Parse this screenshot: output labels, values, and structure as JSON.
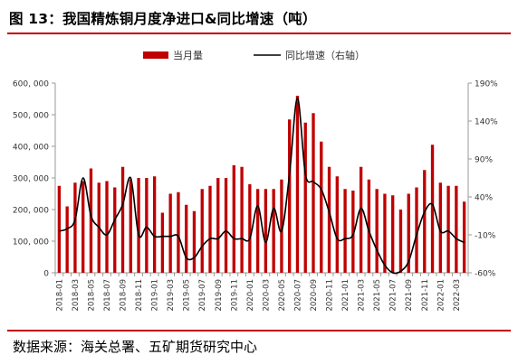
{
  "figure": {
    "title": "图 13：我国精炼铜月度净进口&同比增速（吨）",
    "source": "数据来源：海关总署、五矿期货研究中心"
  },
  "chart_data": {
    "type": "bar",
    "legend": {
      "bar_name": "当月量",
      "line_name": "同比增速（右轴）",
      "position": "top-center"
    },
    "categories": [
      "2018-01",
      "2018-02",
      "2018-03",
      "2018-04",
      "2018-05",
      "2018-06",
      "2018-07",
      "2018-08",
      "2018-09",
      "2018-10",
      "2018-11",
      "2018-12",
      "2019-01",
      "2019-02",
      "2019-03",
      "2019-04",
      "2019-05",
      "2019-06",
      "2019-07",
      "2019-08",
      "2019-09",
      "2019-10",
      "2019-11",
      "2019-12",
      "2020-01",
      "2020-02",
      "2020-03",
      "2020-04",
      "2020-05",
      "2020-06",
      "2020-07",
      "2020-08",
      "2020-09",
      "2020-10",
      "2020-11",
      "2020-12",
      "2021-01",
      "2021-02",
      "2021-03",
      "2021-04",
      "2021-05",
      "2021-06",
      "2021-07",
      "2021-08",
      "2021-09",
      "2021-10",
      "2021-11",
      "2021-12",
      "2022-01",
      "2022-02",
      "2022-03",
      "2022-04"
    ],
    "x_tick_labels": [
      "2018-01",
      "2018-03",
      "2018-05",
      "2018-07",
      "2018-09",
      "2018-11",
      "2019-01",
      "2019-03",
      "2019-05",
      "2019-07",
      "2019-09",
      "2019-11",
      "2020-01",
      "2020-03",
      "2020-05",
      "2020-07",
      "2020-09",
      "2020-11",
      "2021-01",
      "2021-03",
      "2021-05",
      "2021-07",
      "2021-09",
      "2021-11",
      "2022-01",
      "2022-03"
    ],
    "series": [
      {
        "name": "当月量",
        "type": "bar",
        "axis": "left",
        "color": "#c00000",
        "values": [
          275000,
          210000,
          285000,
          290000,
          330000,
          285000,
          290000,
          270000,
          335000,
          295000,
          300000,
          300000,
          305000,
          190000,
          250000,
          255000,
          215000,
          195000,
          265000,
          275000,
          300000,
          300000,
          340000,
          335000,
          280000,
          265000,
          265000,
          265000,
          295000,
          485000,
          560000,
          475000,
          505000,
          415000,
          335000,
          305000,
          265000,
          260000,
          335000,
          295000,
          265000,
          250000,
          245000,
          200000,
          250000,
          270000,
          325000,
          405000,
          285000,
          275000,
          275000,
          225000
        ]
      },
      {
        "name": "同比增速（右轴）",
        "type": "line",
        "axis": "right",
        "color": "#000000",
        "values": [
          -5,
          -2,
          10,
          65,
          15,
          0,
          -10,
          10,
          30,
          65,
          -10,
          0,
          -12,
          -12,
          -12,
          -12,
          -40,
          -40,
          -25,
          -15,
          -15,
          -5,
          -15,
          -15,
          -15,
          28,
          -20,
          25,
          -5,
          70,
          170,
          70,
          60,
          50,
          20,
          -15,
          -15,
          -10,
          25,
          -5,
          -30,
          -50,
          -60,
          -58,
          -45,
          -10,
          20,
          30,
          -5,
          -5,
          -15,
          -20
        ]
      }
    ],
    "y_left": {
      "ticks": [
        "0",
        "100, 000",
        "200, 000",
        "300, 000",
        "400, 000",
        "500, 000",
        "600, 000"
      ],
      "min": 0,
      "max": 600000
    },
    "y_right": {
      "ticks": [
        "-60%",
        "-10%",
        "40%",
        "90%",
        "140%",
        "190%"
      ],
      "min": -60,
      "max": 190
    },
    "grid": false
  }
}
